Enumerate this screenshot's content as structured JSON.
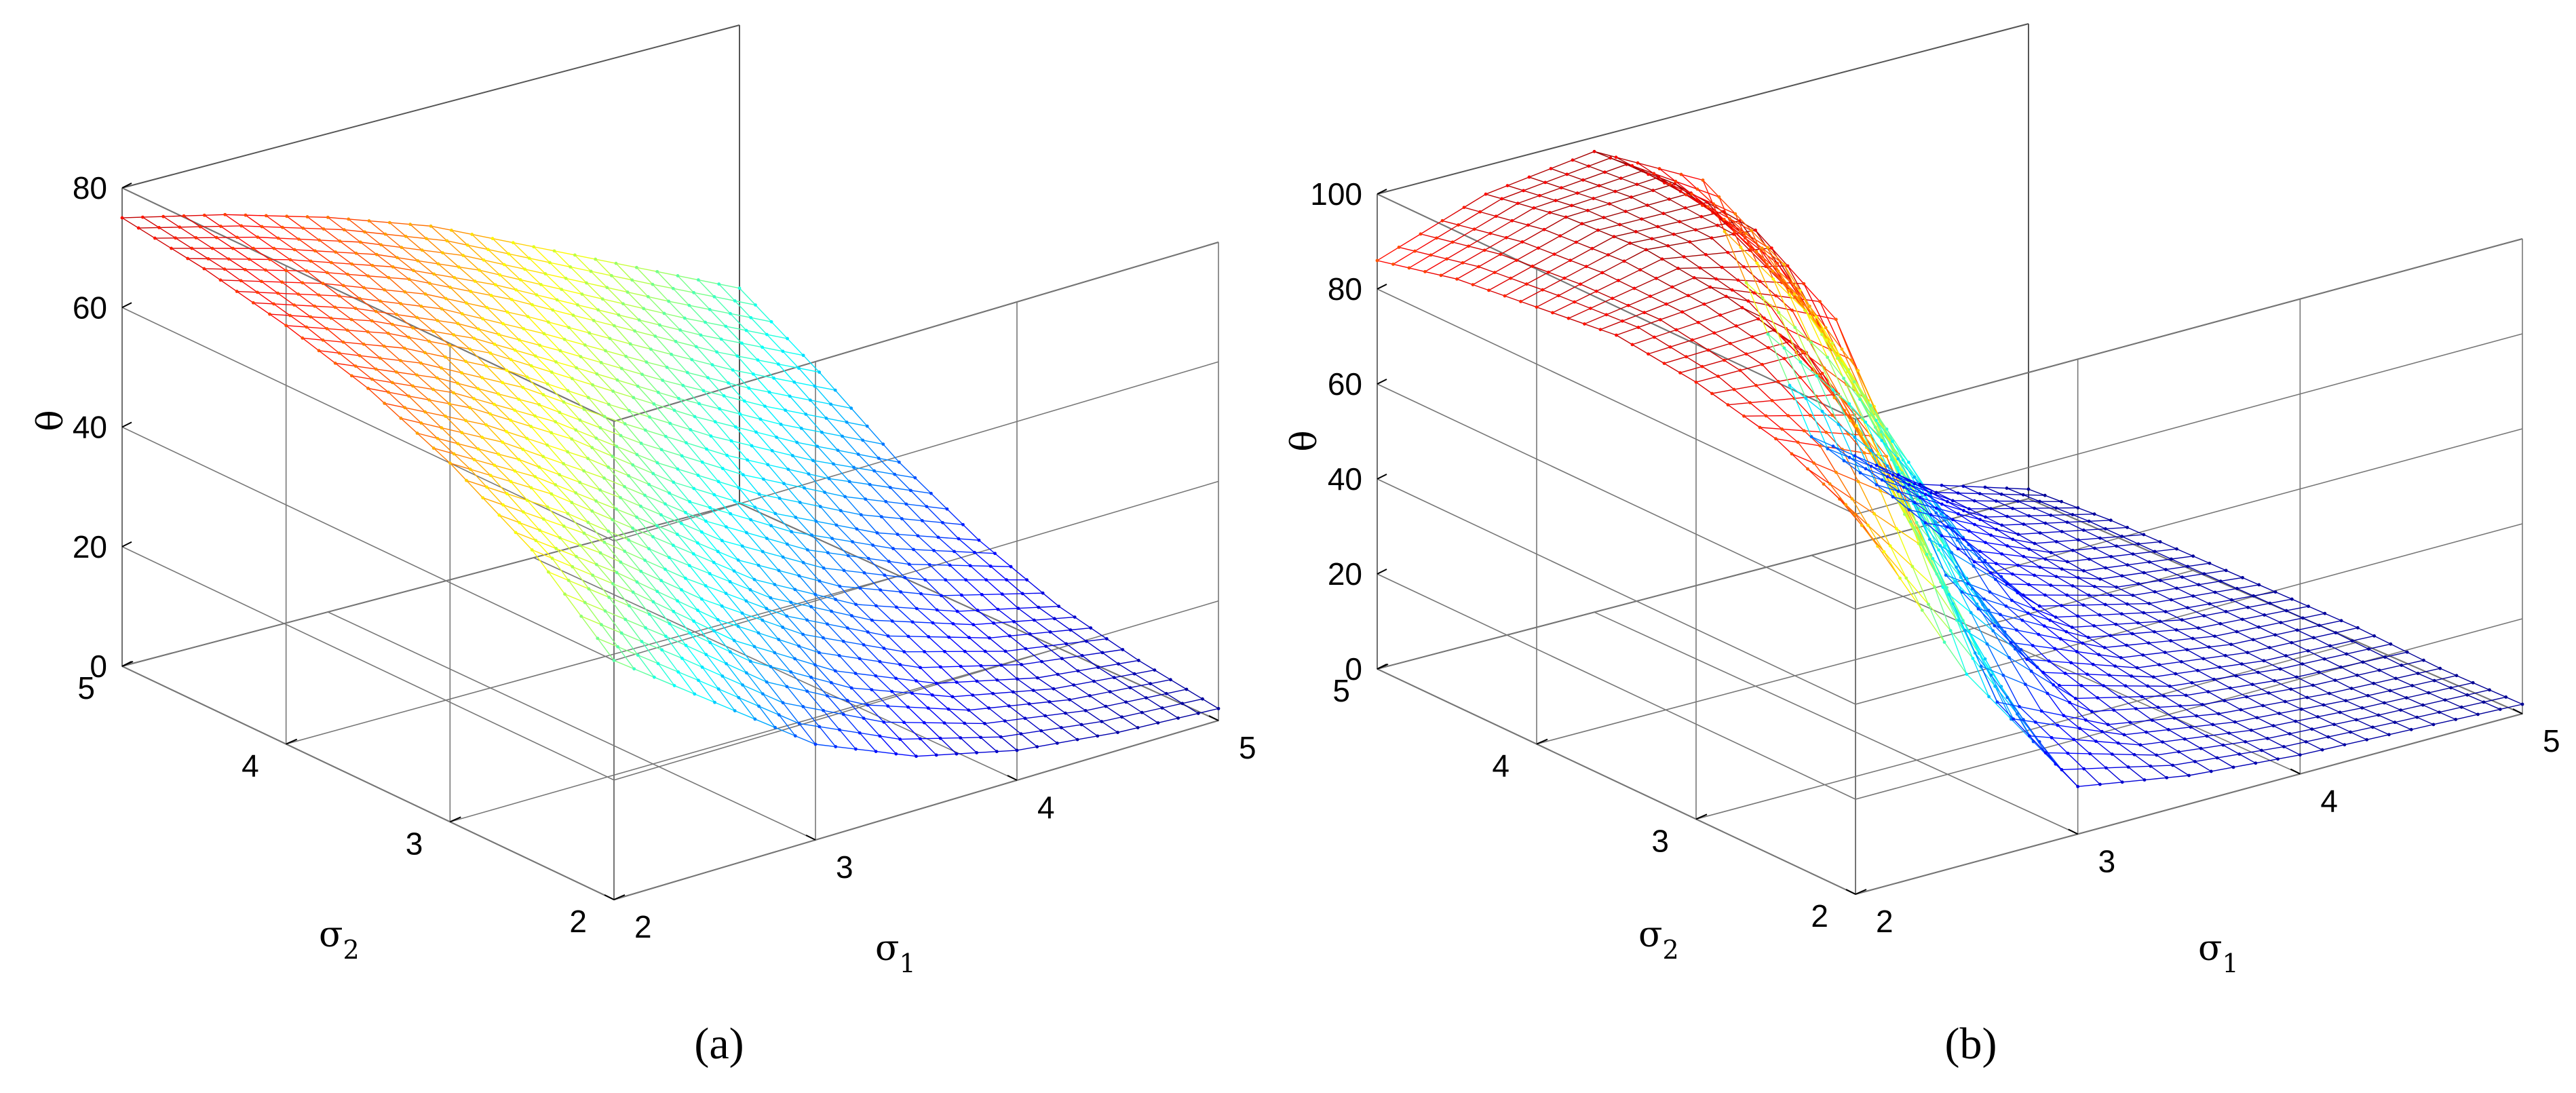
{
  "chart_data": [
    {
      "type": "surface",
      "caption": "(a)",
      "xlabel": "σ",
      "xlabel_sub": "1",
      "ylabel": "σ",
      "ylabel_sub": "2",
      "zlabel": "θ",
      "xlim": [
        2,
        5
      ],
      "ylim": [
        2,
        5
      ],
      "zlim": [
        0,
        80
      ],
      "x_ticks": [
        "2",
        "3",
        "4",
        "5"
      ],
      "y_ticks": [
        "2",
        "3",
        "4",
        "5"
      ],
      "z_ticks": [
        "0",
        "20",
        "40",
        "60",
        "80"
      ],
      "grid": true,
      "colormap": "jet",
      "grid_size": 31,
      "description_of_surface": {
        "x": [
          2.0,
          2.5,
          3.0,
          3.5,
          4.0,
          4.5,
          5.0
        ],
        "y": [
          2.0,
          2.5,
          3.0,
          3.5,
          4.0,
          4.5,
          5.0
        ],
        "z": [
          [
            40,
            28,
            16,
            9,
            5,
            3,
            2
          ],
          [
            52,
            40,
            27,
            17,
            10,
            6,
            4
          ],
          [
            60,
            50,
            38,
            26,
            17,
            11,
            7
          ],
          [
            66,
            58,
            48,
            36,
            26,
            18,
            12
          ],
          [
            70,
            64,
            56,
            46,
            36,
            27,
            19
          ],
          [
            73,
            68,
            62,
            54,
            45,
            36,
            28
          ],
          [
            75,
            71,
            66,
            60,
            52,
            44,
            36
          ]
        ]
      }
    },
    {
      "type": "surface",
      "caption": "(b)",
      "xlabel": "σ",
      "xlabel_sub": "1",
      "ylabel": "σ",
      "ylabel_sub": "2",
      "zlabel": "θ",
      "xlim": [
        2,
        5
      ],
      "ylim": [
        2,
        5
      ],
      "zlim": [
        0,
        100
      ],
      "x_ticks": [
        "2",
        "3",
        "4",
        "5"
      ],
      "y_ticks": [
        "2",
        "3",
        "4",
        "5"
      ],
      "z_ticks": [
        "0",
        "20",
        "40",
        "60",
        "80",
        "100"
      ],
      "grid": true,
      "colormap": "jet",
      "grid_size": 31,
      "description_of_surface": {
        "x": [
          2.0,
          2.5,
          3.0,
          3.5,
          4.0,
          4.5,
          5.0
        ],
        "y": [
          2.0,
          2.5,
          3.0,
          3.5,
          4.0,
          4.5,
          5.0
        ],
        "z": [
          [
            80,
            40,
            10,
            6,
            4,
            3,
            2
          ],
          [
            88,
            78,
            20,
            9,
            5,
            3,
            2
          ],
          [
            92,
            92,
            50,
            15,
            7,
            4,
            3
          ],
          [
            94,
            96,
            85,
            25,
            10,
            5,
            3
          ],
          [
            92,
            98,
            96,
            55,
            14,
            6,
            3
          ],
          [
            90,
            97,
            98,
            75,
            20,
            8,
            3
          ],
          [
            86,
            94,
            97,
            85,
            25,
            9,
            2
          ]
        ]
      }
    }
  ]
}
